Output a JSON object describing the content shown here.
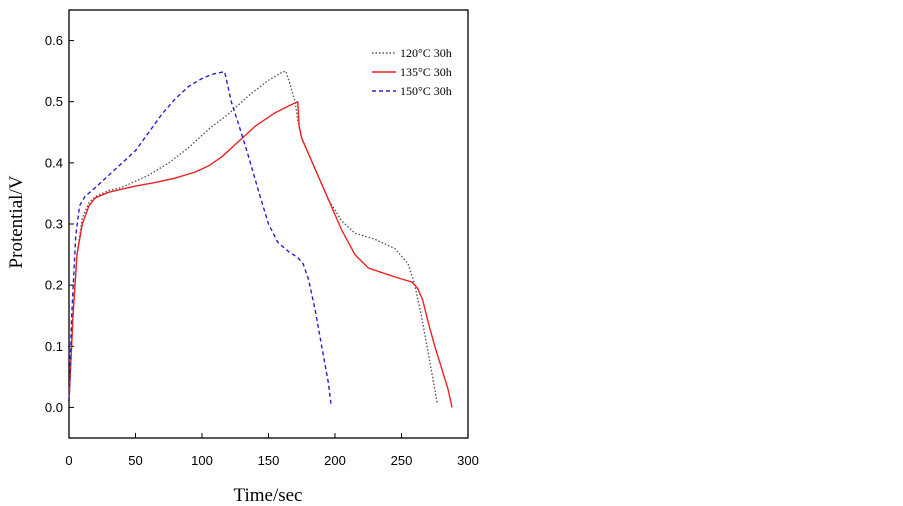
{
  "chart_data": {
    "type": "line",
    "xlabel": "Time/sec",
    "ylabel": "Protential/V",
    "xlim": [
      0,
      300
    ],
    "ylim": [
      -0.05,
      0.65
    ],
    "xticks": [
      "0",
      "50",
      "100",
      "150",
      "200",
      "250",
      "300"
    ],
    "yticks": [
      "0.0",
      "0.1",
      "0.2",
      "0.3",
      "0.4",
      "0.5",
      "0.6"
    ],
    "grid": false,
    "legend_position": "top-right",
    "series": [
      {
        "name": "120°C 30h",
        "color": "#555555",
        "style": "dotted",
        "x": [
          0,
          3,
          6,
          10,
          15,
          20,
          30,
          40,
          50,
          60,
          75,
          90,
          105,
          120,
          135,
          150,
          160,
          163,
          166,
          170,
          172,
          175,
          185,
          195,
          205,
          215,
          230,
          245,
          255,
          260,
          265,
          270,
          275,
          277
        ],
        "y": [
          0.01,
          0.15,
          0.25,
          0.31,
          0.335,
          0.345,
          0.355,
          0.36,
          0.37,
          0.38,
          0.4,
          0.425,
          0.455,
          0.48,
          0.51,
          0.535,
          0.548,
          0.55,
          0.53,
          0.5,
          0.47,
          0.44,
          0.39,
          0.34,
          0.305,
          0.285,
          0.275,
          0.26,
          0.235,
          0.2,
          0.15,
          0.09,
          0.03,
          0.005
        ]
      },
      {
        "name": "135°C 30h",
        "color": "#ee2222",
        "style": "solid",
        "x": [
          0,
          3,
          6,
          10,
          15,
          20,
          30,
          40,
          50,
          65,
          80,
          95,
          105,
          115,
          125,
          140,
          155,
          165,
          172,
          173,
          175,
          185,
          195,
          205,
          215,
          225,
          240,
          250,
          258,
          262,
          266,
          270,
          275,
          280,
          285,
          288
        ],
        "y": [
          0.01,
          0.15,
          0.25,
          0.3,
          0.33,
          0.343,
          0.352,
          0.357,
          0.362,
          0.368,
          0.375,
          0.385,
          0.395,
          0.41,
          0.43,
          0.46,
          0.482,
          0.493,
          0.5,
          0.46,
          0.44,
          0.39,
          0.34,
          0.29,
          0.25,
          0.228,
          0.217,
          0.21,
          0.205,
          0.195,
          0.175,
          0.14,
          0.1,
          0.065,
          0.03,
          0.0
        ]
      },
      {
        "name": "150°C 30h",
        "color": "#2222cc",
        "style": "dashed",
        "x": [
          0,
          2,
          5,
          8,
          12,
          20,
          30,
          40,
          50,
          60,
          70,
          80,
          90,
          100,
          108,
          114,
          117,
          119,
          122,
          128,
          135,
          143,
          150,
          157,
          165,
          172,
          176,
          180,
          185,
          190,
          195,
          197
        ],
        "y": [
          0.01,
          0.15,
          0.28,
          0.33,
          0.345,
          0.36,
          0.38,
          0.4,
          0.42,
          0.45,
          0.48,
          0.505,
          0.525,
          0.538,
          0.545,
          0.548,
          0.549,
          0.53,
          0.5,
          0.46,
          0.41,
          0.35,
          0.3,
          0.27,
          0.255,
          0.245,
          0.235,
          0.21,
          0.16,
          0.1,
          0.04,
          0.005
        ]
      }
    ]
  }
}
